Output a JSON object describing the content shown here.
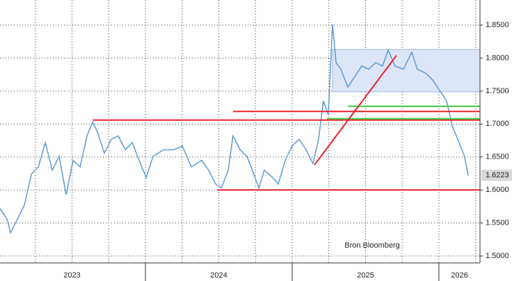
{
  "chart_data": {
    "type": "line",
    "x": [
      2023.009,
      2023.057,
      2023.081,
      2023.128,
      2023.175,
      2023.223,
      2023.27,
      2023.318,
      2023.365,
      2023.412,
      2023.46,
      2023.507,
      2023.555,
      2023.602,
      2023.64,
      2023.673,
      2023.72,
      2023.768,
      2023.815,
      2023.863,
      2023.91,
      2023.957,
      2024.005,
      2024.052,
      2024.123,
      2024.194,
      2024.251,
      2024.313,
      2024.384,
      2024.431,
      2024.479,
      2024.517,
      2024.564,
      2024.597,
      2024.645,
      2024.692,
      2024.739,
      2024.773,
      2024.81,
      2024.867,
      2024.905,
      2024.953,
      2025.0,
      2025.047,
      2025.095,
      2025.142,
      2025.18,
      2025.213,
      2025.246,
      2025.275,
      2025.299,
      2025.332,
      2025.379,
      2025.427,
      2025.474,
      2025.521,
      2025.569,
      2025.616,
      2025.654,
      2025.701,
      2025.758,
      2025.815,
      2025.853,
      2025.91,
      2025.957,
      2026.005,
      2026.052,
      2026.09,
      2026.137,
      2026.175,
      2026.199
    ],
    "series": [
      {
        "color": "#5b9bd5",
        "values": [
          1.572,
          1.556,
          1.535,
          1.556,
          1.577,
          1.624,
          1.635,
          1.672,
          1.63,
          1.651,
          1.593,
          1.645,
          1.635,
          1.682,
          1.703,
          1.688,
          1.656,
          1.677,
          1.682,
          1.661,
          1.672,
          1.645,
          1.619,
          1.651,
          1.661,
          1.661,
          1.667,
          1.635,
          1.645,
          1.63,
          1.609,
          1.603,
          1.63,
          1.682,
          1.661,
          1.651,
          1.624,
          1.603,
          1.63,
          1.619,
          1.609,
          1.645,
          1.667,
          1.677,
          1.661,
          1.64,
          1.677,
          1.735,
          1.714,
          1.851,
          1.793,
          1.783,
          1.756,
          1.772,
          1.788,
          1.783,
          1.793,
          1.788,
          1.812,
          1.788,
          1.783,
          1.809,
          1.783,
          1.777,
          1.767,
          1.751,
          1.735,
          1.698,
          1.672,
          1.651,
          1.622
        ]
      }
    ],
    "xlim": [
      2023.009,
      2026.28
    ],
    "ylim": [
      1.4895,
      1.888
    ],
    "yticks": [
      {
        "value": 1.5,
        "label": "1.5000"
      },
      {
        "value": 1.55,
        "label": "1.5500"
      },
      {
        "value": 1.6,
        "label": "1.6000"
      },
      {
        "value": 1.65,
        "label": "1.6500"
      },
      {
        "value": 1.7,
        "label": "1.7000"
      },
      {
        "value": 1.75,
        "label": "1.7500"
      },
      {
        "value": 1.8,
        "label": "1.8000"
      },
      {
        "value": 1.85,
        "label": "1.8500"
      }
    ],
    "xticks": [
      {
        "value": 2023.5,
        "label": "2023"
      },
      {
        "value": 2024.5,
        "label": "2024"
      },
      {
        "value": 2025.5,
        "label": "2025"
      },
      {
        "value": 2026.14,
        "label": "2026"
      }
    ],
    "x_separators": [
      2024,
      2025,
      2026
    ],
    "xgrid": [
      2023.25,
      2023.5,
      2023.75,
      2024,
      2024.25,
      2024.5,
      2024.75,
      2025,
      2025.25,
      2025.5,
      2025.75,
      2026,
      2026.25
    ],
    "grid": true,
    "lines": [
      {
        "color": "#e8202a",
        "x": [
          2023.64,
          2026.28
        ],
        "y": [
          1.706,
          1.706
        ]
      },
      {
        "color": "#e8202a",
        "x": [
          2024.597,
          2026.28
        ],
        "y": [
          1.719,
          1.719
        ]
      },
      {
        "color": "#e8202a",
        "x": [
          2024.493,
          2026.28
        ],
        "y": [
          1.6,
          1.6
        ]
      },
      {
        "color": "#3cc83c",
        "x": [
          2025.379,
          2026.28
        ],
        "y": [
          1.727,
          1.727
        ]
      },
      {
        "color": "#3cc83c",
        "x": [
          2025.237,
          2026.28
        ],
        "y": [
          1.708,
          1.708
        ]
      },
      {
        "color": "#e8202a",
        "x": [
          2025.152,
          2025.711
        ],
        "y": [
          1.638,
          1.804
        ]
      }
    ],
    "band": {
      "color": "#dde6f7",
      "x": [
        2025.275,
        2026.28
      ],
      "y": [
        1.749,
        1.813
      ]
    },
    "last_value": {
      "value": 1.6223,
      "label": "1.6223"
    },
    "annotation": "Bron Bloomberg"
  }
}
